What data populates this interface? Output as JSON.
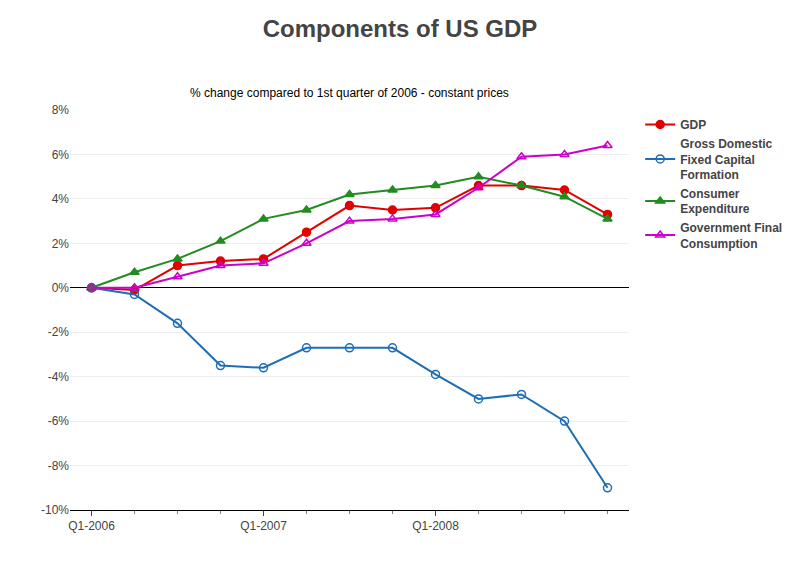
{
  "chart_data": {
    "type": "line",
    "title": "Components of US GDP",
    "subtitle": "% change compared to 1st quarter of 2006 - constant prices",
    "categories": [
      "Q1-2006",
      null,
      null,
      null,
      "Q1-2007",
      null,
      null,
      null,
      "Q1-2008",
      null,
      null,
      null,
      null
    ],
    "series": [
      {
        "name": "GDP",
        "color": "#e00000",
        "marker": "circle",
        "values": [
          0.0,
          -0.1,
          1.0,
          1.2,
          1.3,
          2.5,
          3.7,
          3.5,
          3.6,
          4.6,
          4.6,
          4.4,
          3.3
        ]
      },
      {
        "name": "Gross Domestic\nFixed Capital\nFormation",
        "color": "#1e6db5",
        "marker": "circle-open",
        "values": [
          0.0,
          -0.3,
          -1.6,
          -3.5,
          -3.6,
          -2.7,
          -2.7,
          -2.7,
          -3.9,
          -5.0,
          -4.8,
          -6.0,
          -9.0
        ]
      },
      {
        "name": "Consumer\nExpenditure",
        "color": "#228b22",
        "marker": "triangle-up",
        "values": [
          0.0,
          0.7,
          1.3,
          2.1,
          3.1,
          3.5,
          4.2,
          4.4,
          4.6,
          5.0,
          4.6,
          4.1,
          3.1
        ]
      },
      {
        "name": "Government Final\nConsumption",
        "color": "#cc00cc",
        "marker": "triangle-up-open",
        "values": [
          0.0,
          0.0,
          0.5,
          1.0,
          1.1,
          2.0,
          3.0,
          3.1,
          3.3,
          4.5,
          5.9,
          6.0,
          6.4
        ]
      }
    ],
    "ylim": [
      -10,
      8
    ],
    "yticks": [
      {
        "value": -10,
        "label": "-10%"
      },
      {
        "value": -8,
        "label": "-8%"
      },
      {
        "value": -6,
        "label": "-6%"
      },
      {
        "value": -4,
        "label": "-4%"
      },
      {
        "value": -2,
        "label": "-2%"
      },
      {
        "value": 0,
        "label": "0%"
      },
      {
        "value": 2,
        "label": "2%"
      },
      {
        "value": 4,
        "label": "4%"
      },
      {
        "value": 6,
        "label": "6%"
      },
      {
        "value": 8,
        "label": "8%"
      }
    ],
    "grid": true,
    "legend": "right"
  }
}
